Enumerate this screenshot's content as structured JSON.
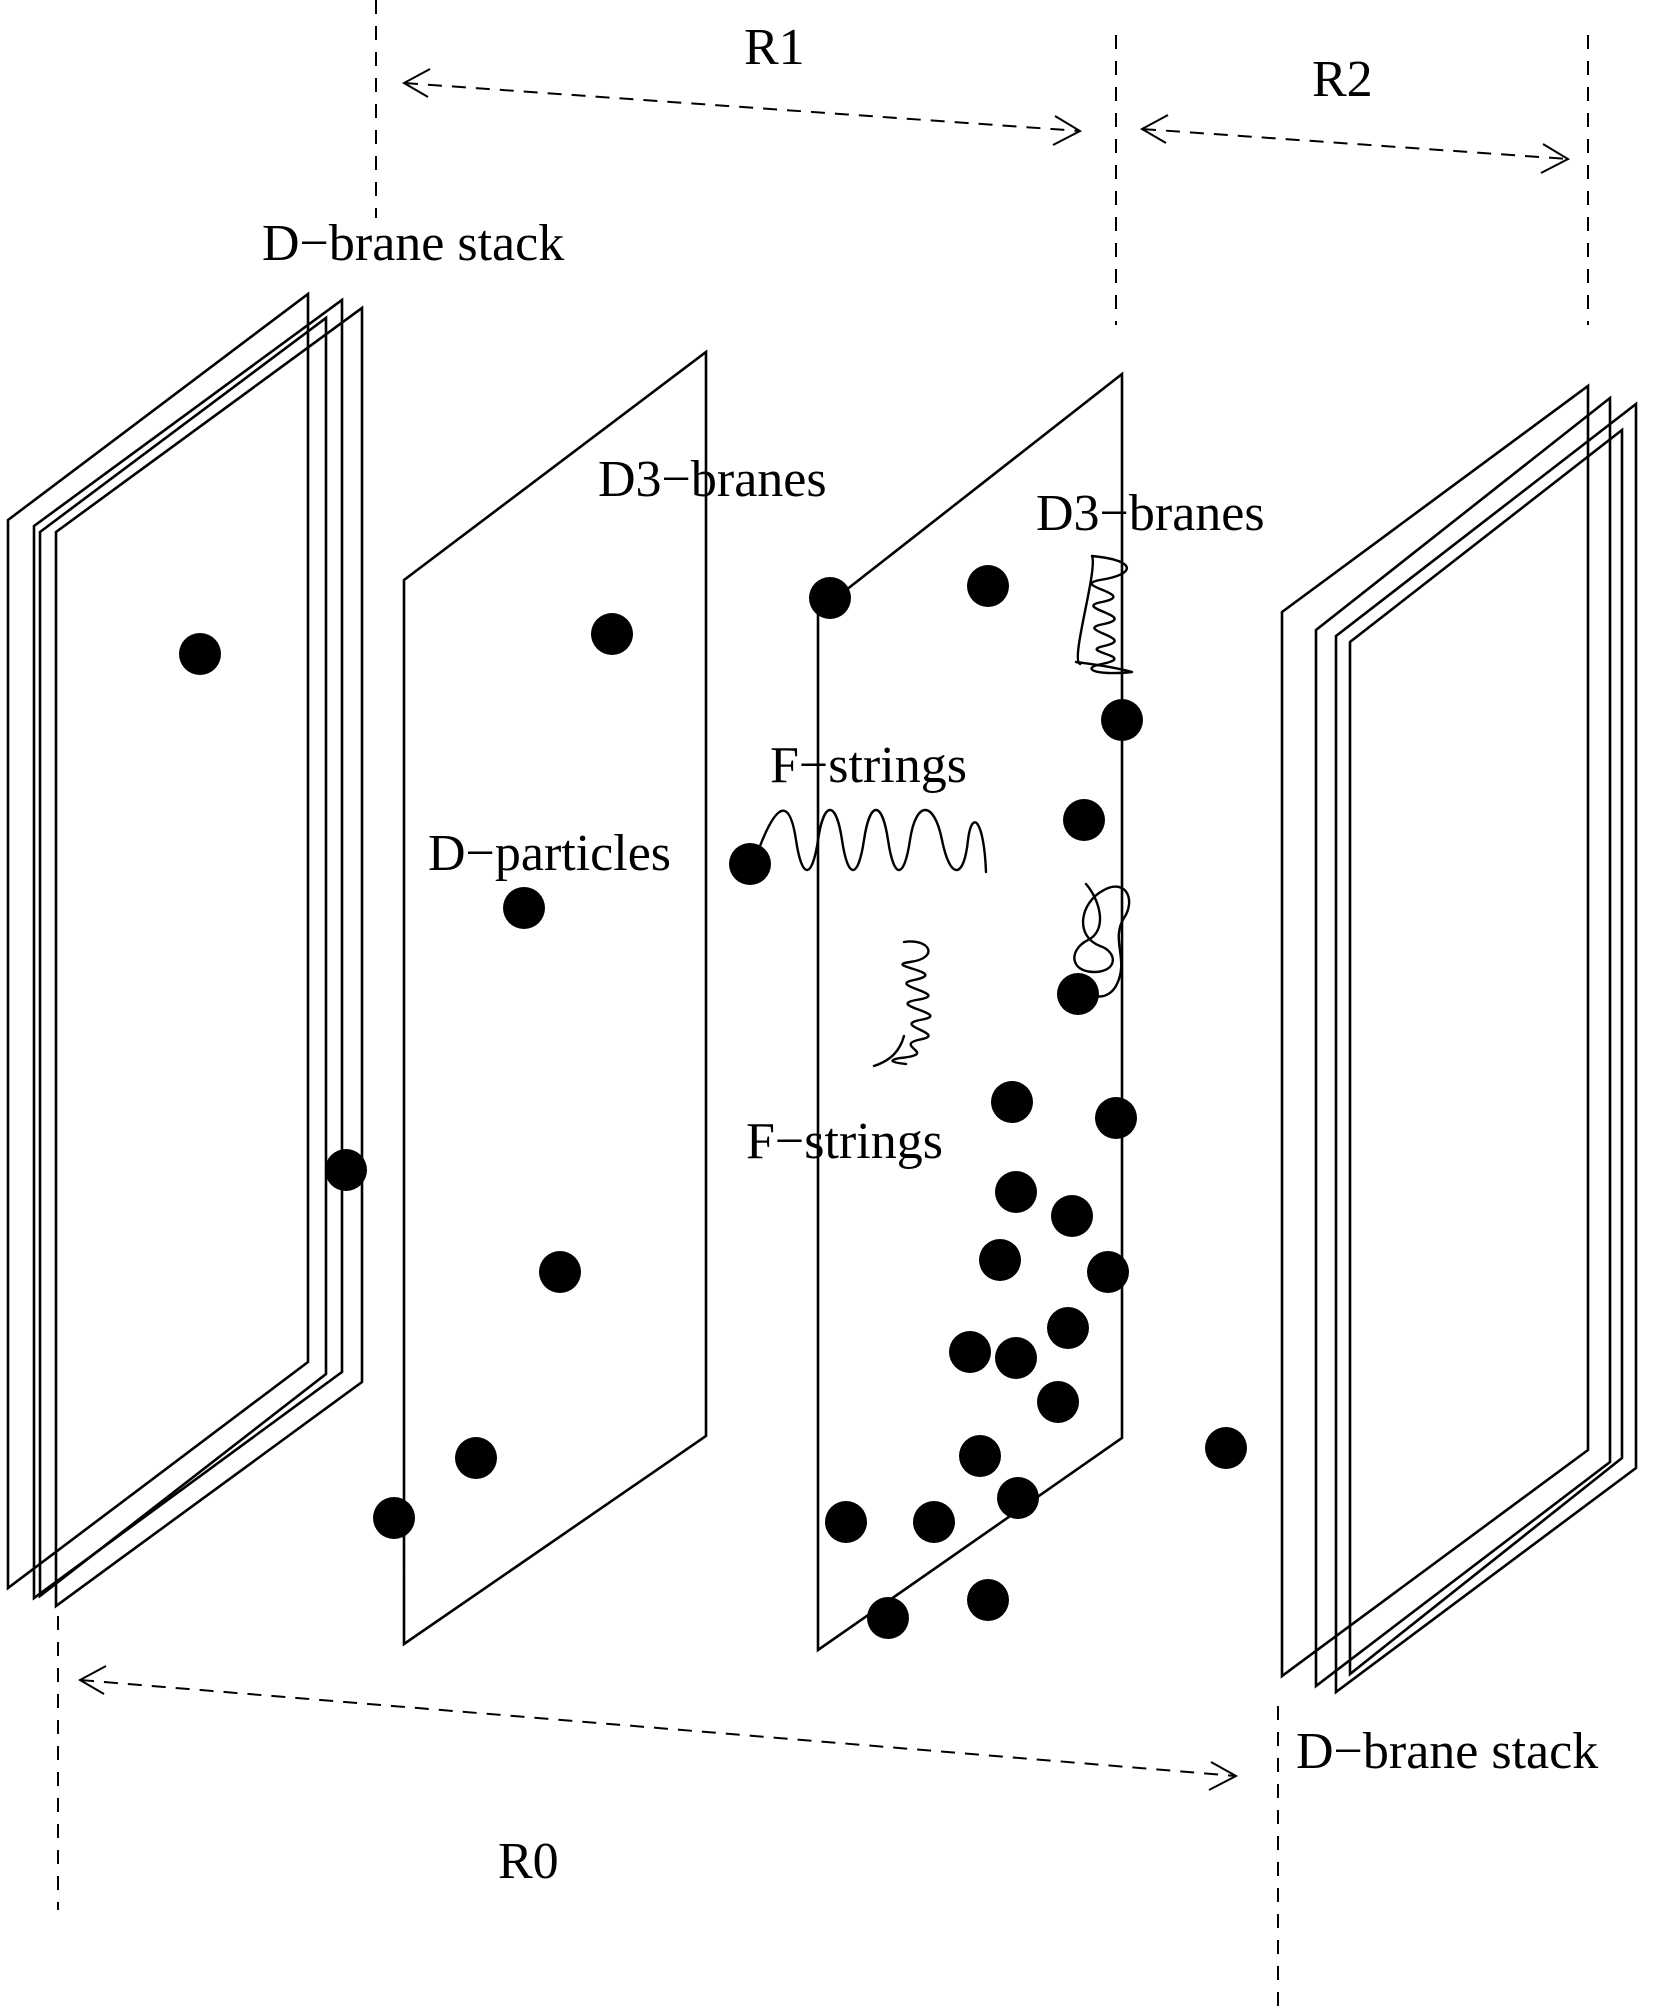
{
  "labels": {
    "r1": "R1",
    "r2": "R2",
    "r0": "R0",
    "stack_left": "D−brane stack",
    "stack_right": "D−brane stack",
    "d3_center": "D3−branes",
    "d3_right": "D3−branes",
    "fstrings_upper": "F−strings",
    "fstrings_lower": "F−strings",
    "dparticles": "D−particles"
  },
  "colors": {
    "ink": "#000000",
    "background": "#ffffff"
  }
}
